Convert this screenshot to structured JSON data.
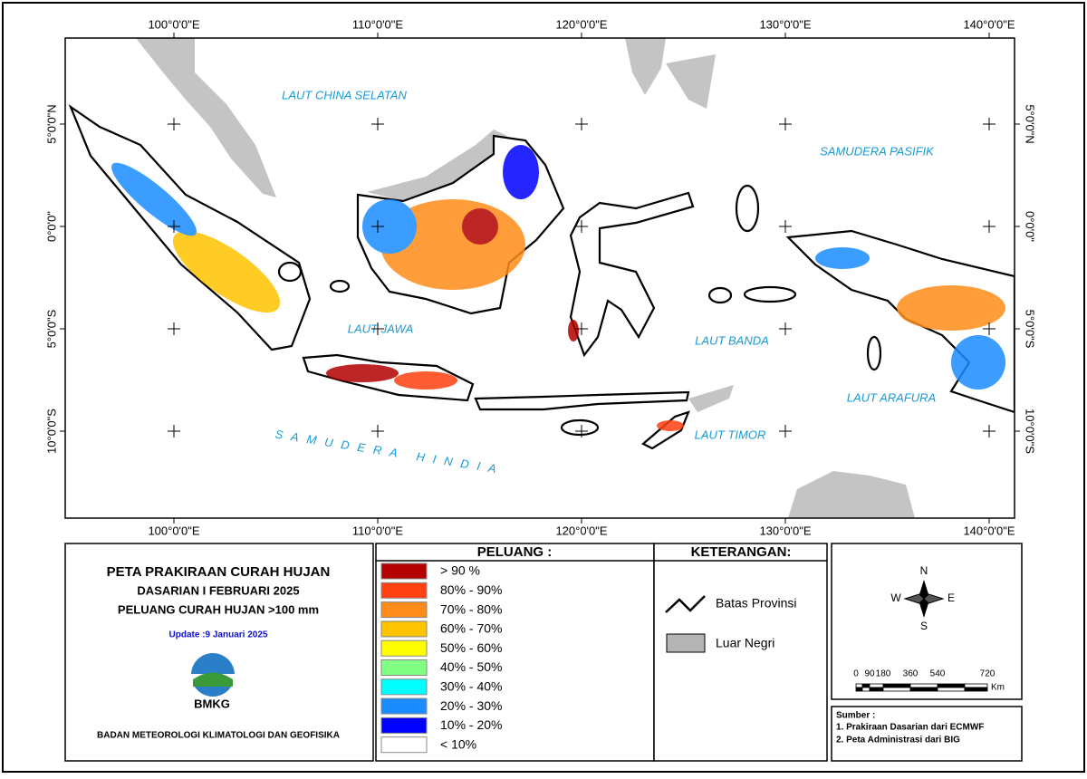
{
  "map": {
    "lon_labels": [
      "100°0'0\"E",
      "110°0'0\"E",
      "120°0'0\"E",
      "130°0'0\"E",
      "140°0'0\"E"
    ],
    "lat_labels": [
      "5°0'0\"N",
      "0°0'0\"",
      "5°0'0\"S",
      "10°0'0\"S"
    ],
    "sea_labels": [
      "LAUT CHINA SELATAN",
      "SAMUDERA PASIFIK",
      "LAUT JAWA",
      "LAUT BANDA",
      "LAUT ARAFURA",
      "LAUT TIMOR",
      "SAMUDERA HINDIA"
    ]
  },
  "title_block": {
    "title": "PETA PRAKIRAAN CURAH HUJAN",
    "period": "DASARIAN I FEBRUARI 2025",
    "subtitle": "PELUANG CURAH HUJAN >100 mm",
    "update": "Update :9 Januari  2025",
    "logo": "BMKG",
    "organization": "BADAN METEOROLOGI KLIMATOLOGI DAN GEOFISIKA"
  },
  "legend": {
    "heading": "PELUANG :",
    "items": [
      {
        "label": "> 90 %",
        "color": "#b30000"
      },
      {
        "label": "80% - 90%",
        "color": "#ff4010"
      },
      {
        "label": "70% - 80%",
        "color": "#ff8c1a"
      },
      {
        "label": "60% - 70%",
        "color": "#ffc300"
      },
      {
        "label": "50% - 60%",
        "color": "#ffff00"
      },
      {
        "label": "40% - 50%",
        "color": "#80ff80"
      },
      {
        "label": "30% - 40%",
        "color": "#00ffff"
      },
      {
        "label": "20% - 30%",
        "color": "#1a8cff"
      },
      {
        "label": "10% - 20%",
        "color": "#0000ff"
      },
      {
        "label": "< 10%",
        "color": "#ffffff"
      }
    ]
  },
  "keterangan": {
    "heading": "KETERANGAN:",
    "items": [
      "Batas Provinsi",
      "Luar Negri"
    ]
  },
  "compass": {
    "n": "N",
    "e": "E",
    "s": "S",
    "w": "W"
  },
  "scale": {
    "ticks": [
      "0",
      "90",
      "180",
      "360",
      "540",
      "720"
    ],
    "unit": "Km"
  },
  "sources": {
    "heading": "Sumber :",
    "items": [
      "1. Prakiraan Dasarian dari ECMWF",
      "2. Peta Administrasi dari BIG"
    ]
  }
}
